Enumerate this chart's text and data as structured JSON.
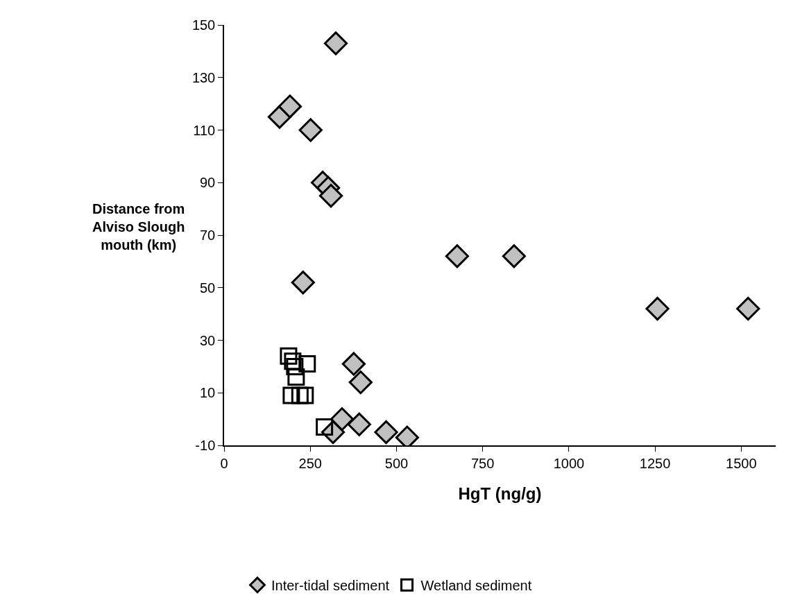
{
  "chart_data": {
    "type": "scatter",
    "xlabel": "HgT (ng/g)",
    "ylabel": "Distance from Alviso Slough mouth (km)",
    "xlim": [
      0,
      1600
    ],
    "xticks": [
      0,
      250,
      500,
      750,
      1000,
      1250,
      1500
    ],
    "ylim": [
      -10,
      150
    ],
    "yticks": [
      -10,
      10,
      30,
      50,
      70,
      90,
      110,
      130,
      150
    ],
    "grid": false,
    "legend": "bottom",
    "series": [
      {
        "name": "Inter-tidal sediment",
        "color": "#c0c0c0",
        "marker": "diamond",
        "x": [
          324,
          161,
          191,
          251,
          286,
          302,
          310,
          229,
          376,
          396,
          342,
          392,
          470,
          531,
          316,
          676,
          841,
          1257,
          1520
        ],
        "values": [
          143,
          115,
          119,
          110,
          90,
          88,
          85,
          52,
          21,
          14,
          0,
          -2,
          -5,
          -7,
          -5,
          62,
          62,
          42,
          42
        ]
      },
      {
        "name": "Wetland sediment",
        "color": "#000000",
        "marker": "square",
        "x": [
          187,
          199,
          241,
          205,
          209,
          195,
          220,
          235,
          291
        ],
        "values": [
          24,
          22,
          21,
          20,
          16,
          9,
          9,
          9,
          -3
        ]
      }
    ]
  }
}
